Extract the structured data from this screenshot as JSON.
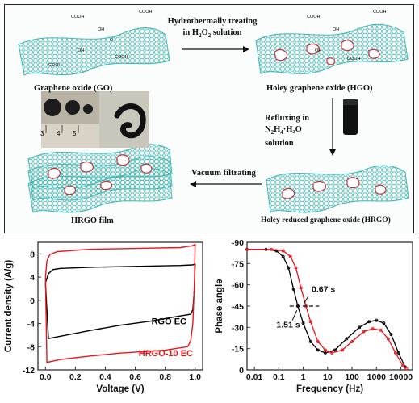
{
  "schematic": {
    "labels": {
      "go": "Graphene oxide (GO)",
      "hgo": "Holey graphene oxide (HGO)",
      "hrgo": "Holey reduced graphene oxide (HRGO)",
      "film": "HRGO film"
    },
    "steps": {
      "s1_line1": "Hydrothermally treating",
      "s1_line2_pre": "in H",
      "s1_line2_sub1": "2",
      "s1_line2_mid": "O",
      "s1_line2_sub2": "2",
      "s1_line2_post": " solution",
      "s2_line1": "Refluxing in",
      "s2_pre": "N",
      "s2_sub1": "2",
      "s2_mid1": "H",
      "s2_sub2": "4",
      "s2_post": "·H₂O solution",
      "s3": "Vacuum filtrating"
    },
    "groups": [
      "COOH",
      "OH",
      "O"
    ],
    "ruler_ticks": [
      "3",
      "4",
      "5"
    ],
    "colors": {
      "sheet": "#3fb7b4",
      "hole": "#c2323a"
    }
  },
  "chart_data": [
    {
      "type": "line",
      "title": "",
      "xlabel": "Voltage (V)",
      "ylabel": "Current density (A/g)",
      "xlim": [
        -0.05,
        1.05
      ],
      "ylim": [
        -12,
        10
      ],
      "xticks": [
        "0.0",
        "0.2",
        "0.4",
        "0.6",
        "0.8",
        "1.0"
      ],
      "yticks": [
        "-12",
        "-8",
        "-4",
        "0",
        "4",
        "8"
      ],
      "legend_placement": "bottom-right",
      "series": [
        {
          "name": "RGO EC",
          "color": "#000000",
          "upper": [
            [
              0.0,
              3.0
            ],
            [
              0.02,
              4.6
            ],
            [
              0.05,
              5.3
            ],
            [
              0.1,
              5.5
            ],
            [
              0.3,
              5.7
            ],
            [
              0.5,
              5.8
            ],
            [
              0.7,
              5.9
            ],
            [
              0.9,
              6.0
            ],
            [
              0.98,
              6.1
            ],
            [
              1.0,
              6.2
            ]
          ],
          "lower": [
            [
              1.0,
              6.2
            ],
            [
              0.995,
              2.0
            ],
            [
              0.985,
              -1.6
            ],
            [
              0.97,
              -2.4
            ],
            [
              0.9,
              -2.7
            ],
            [
              0.7,
              -3.6
            ],
            [
              0.5,
              -4.3
            ],
            [
              0.3,
              -5.2
            ],
            [
              0.1,
              -6.2
            ],
            [
              0.02,
              -6.6
            ],
            [
              0.0,
              3.0
            ]
          ]
        },
        {
          "name": "HRGO-10 EC",
          "color": "#e8151b",
          "upper": [
            [
              0.0,
              4.0
            ],
            [
              0.01,
              6.8
            ],
            [
              0.03,
              7.9
            ],
            [
              0.08,
              8.4
            ],
            [
              0.3,
              8.8
            ],
            [
              0.5,
              8.9
            ],
            [
              0.7,
              9.0
            ],
            [
              0.9,
              9.1
            ],
            [
              0.98,
              9.4
            ],
            [
              1.0,
              9.6
            ]
          ],
          "lower": [
            [
              1.0,
              9.6
            ],
            [
              0.995,
              3.0
            ],
            [
              0.985,
              -4.0
            ],
            [
              0.97,
              -7.0
            ],
            [
              0.95,
              -8.0
            ],
            [
              0.8,
              -8.6
            ],
            [
              0.5,
              -9.1
            ],
            [
              0.3,
              -9.6
            ],
            [
              0.1,
              -10.2
            ],
            [
              0.01,
              -10.7
            ],
            [
              0.0,
              4.0
            ]
          ]
        }
      ]
    },
    {
      "type": "line",
      "title": "",
      "xlabel": "Frequency (Hz)",
      "ylabel": "Phase angle",
      "xscale": "log",
      "xlim": [
        0.005,
        30000
      ],
      "ylim": [
        0,
        -90
      ],
      "xticks": [
        "0.01",
        "0.1",
        "1",
        "10",
        "100",
        "1000",
        "10000"
      ],
      "yticks": [
        "0",
        "-15",
        "-30",
        "-45",
        "-60",
        "-75",
        "-90"
      ],
      "annotations": [
        "0.67 s",
        "1.51 s"
      ],
      "series": [
        {
          "name": "",
          "color": "#000000",
          "points": [
            [
              0.005,
              -85
            ],
            [
              0.03,
              -85
            ],
            [
              0.08,
              -84
            ],
            [
              0.15,
              -80
            ],
            [
              0.25,
              -72
            ],
            [
              0.4,
              -57
            ],
            [
              0.6,
              -45
            ],
            [
              1.0,
              -33
            ],
            [
              2.0,
              -20
            ],
            [
              4.0,
              -14
            ],
            [
              8.0,
              -12
            ],
            [
              20,
              -14
            ],
            [
              60,
              -22
            ],
            [
              200,
              -30
            ],
            [
              500,
              -34
            ],
            [
              1000,
              -35
            ],
            [
              2000,
              -33
            ],
            [
              4000,
              -25
            ],
            [
              8000,
              -12
            ],
            [
              15000,
              -2
            ]
          ]
        },
        {
          "name": "",
          "color": "#e8151b",
          "points": [
            [
              0.005,
              -85
            ],
            [
              0.05,
              -85
            ],
            [
              0.15,
              -84
            ],
            [
              0.3,
              -80
            ],
            [
              0.5,
              -72
            ],
            [
              0.8,
              -58
            ],
            [
              1.3,
              -45
            ],
            [
              2.0,
              -34
            ],
            [
              4.0,
              -20
            ],
            [
              8.0,
              -14
            ],
            [
              15,
              -12
            ],
            [
              40,
              -14
            ],
            [
              100,
              -20
            ],
            [
              300,
              -27
            ],
            [
              700,
              -29
            ],
            [
              1500,
              -28
            ],
            [
              3000,
              -22
            ],
            [
              6000,
              -12
            ],
            [
              12000,
              -3
            ],
            [
              17000,
              -1
            ]
          ]
        }
      ]
    }
  ]
}
